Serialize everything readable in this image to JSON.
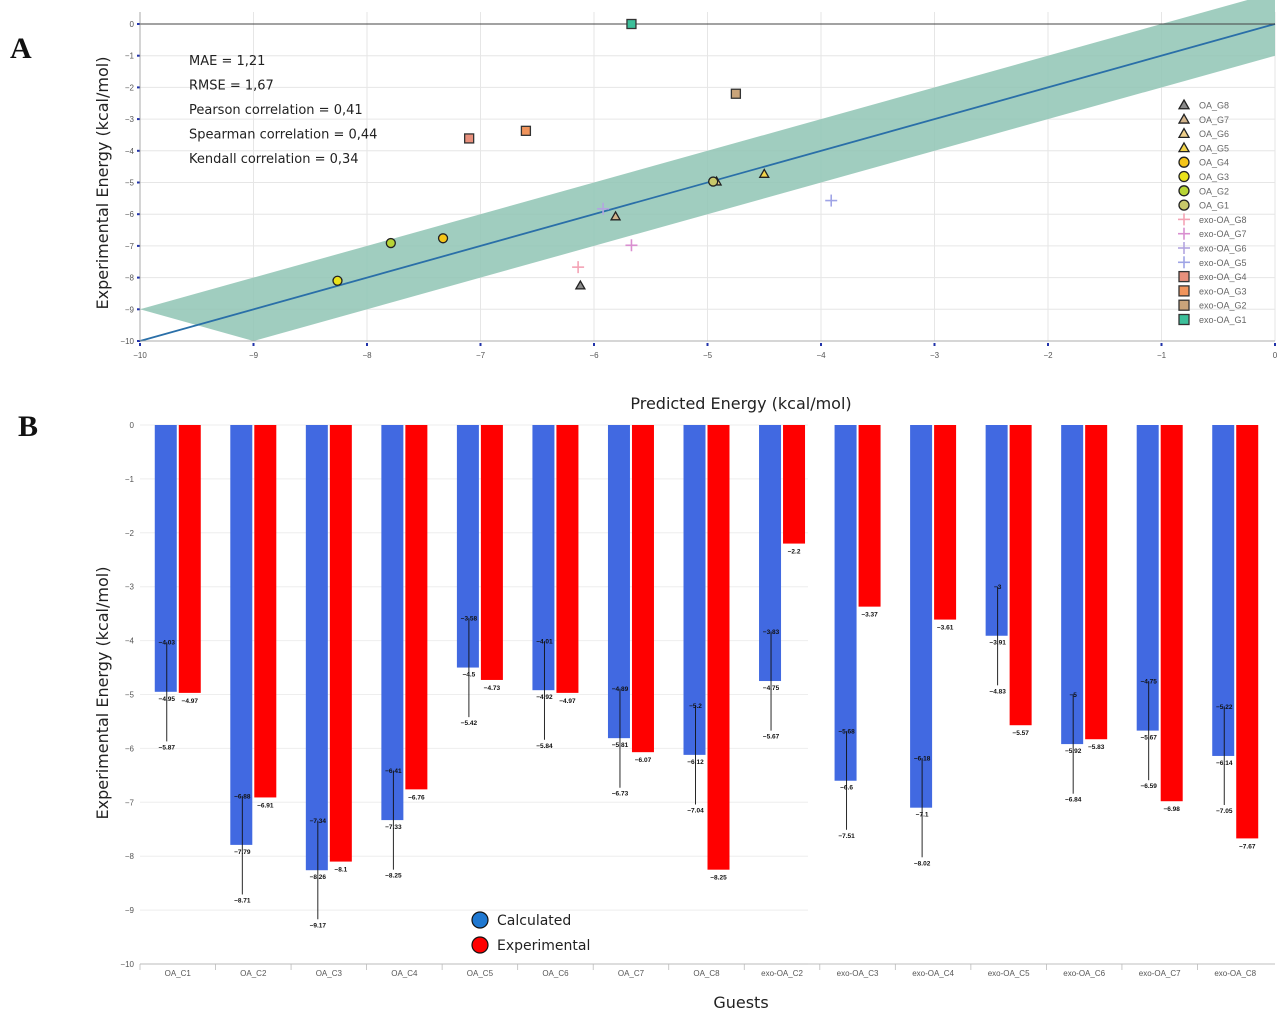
{
  "panel_labels": [
    "A",
    "B"
  ],
  "colors": {
    "band": "#8fc4b4",
    "fit_line": "#2a6fa8",
    "calculated": "#4169e1",
    "experimental": "#ff0000"
  },
  "chart_data": [
    {
      "type": "scatter",
      "xlabel": "Predicted Energy (kcal/mol)",
      "ylabel": "Experimental Energy (kcal/mol)",
      "xlim": [
        -10,
        0
      ],
      "ylim": [
        -10,
        0
      ],
      "xticks": [
        -10,
        -9,
        -8,
        -7,
        -6,
        -5,
        -4,
        -3,
        -2,
        -1,
        0
      ],
      "yticks": [
        0,
        -1,
        -2,
        -3,
        -4,
        -5,
        -6,
        -7,
        -8,
        -9,
        -10
      ],
      "grid": true,
      "stats": [
        "MAE = 1,21",
        "RMSE = 1,67",
        "Pearson correlation = 0,41",
        "Spearman correlation = 0,44",
        "Kendall correlation = 0,34"
      ],
      "legend_position": "right",
      "series": [
        {
          "name": "OA_G8",
          "marker": "triangle",
          "color": "#8a8a8a",
          "points": [
            [
              -6.12,
              -8.25
            ]
          ]
        },
        {
          "name": "OA_G7",
          "marker": "triangle",
          "color": "#d2b48c",
          "points": [
            [
              -5.81,
              -6.07
            ]
          ]
        },
        {
          "name": "OA_G6",
          "marker": "triangle",
          "color": "#eecf8a",
          "points": [
            [
              -4.92,
              -4.97
            ]
          ]
        },
        {
          "name": "OA_G5",
          "marker": "triangle",
          "color": "#f2d349",
          "points": [
            [
              -4.5,
              -4.73
            ]
          ]
        },
        {
          "name": "OA_G4",
          "marker": "circle",
          "color": "#f5c518",
          "points": [
            [
              -7.33,
              -6.76
            ]
          ]
        },
        {
          "name": "OA_G3",
          "marker": "circle",
          "color": "#e9e21a",
          "points": [
            [
              -8.26,
              -8.1
            ]
          ]
        },
        {
          "name": "OA_G2",
          "marker": "circle",
          "color": "#b7d435",
          "points": [
            [
              -7.79,
              -6.91
            ]
          ]
        },
        {
          "name": "OA_G1",
          "marker": "circle",
          "color": "#c8c86a",
          "points": [
            [
              -4.95,
              -4.97
            ]
          ]
        },
        {
          "name": "exo-OA_G8",
          "marker": "cross",
          "color": "#f4a3b5",
          "points": [
            [
              -6.14,
              -7.67
            ]
          ]
        },
        {
          "name": "exo-OA_G7",
          "marker": "cross",
          "color": "#d98fd0",
          "points": [
            [
              -5.67,
              -6.98
            ]
          ]
        },
        {
          "name": "exo-OA_G6",
          "marker": "cross",
          "color": "#b3a5e0",
          "points": [
            [
              -5.92,
              -5.83
            ]
          ]
        },
        {
          "name": "exo-OA_G5",
          "marker": "cross",
          "color": "#9fa4e6",
          "points": [
            [
              -3.91,
              -5.57
            ]
          ]
        },
        {
          "name": "exo-OA_G4",
          "marker": "square",
          "color": "#e8907c",
          "points": [
            [
              -7.1,
              -3.61
            ]
          ]
        },
        {
          "name": "exo-OA_G3",
          "marker": "square",
          "color": "#f0945c",
          "points": [
            [
              -6.6,
              -3.37
            ]
          ]
        },
        {
          "name": "exo-OA_G2",
          "marker": "square",
          "color": "#c9a47a",
          "points": [
            [
              -4.75,
              -2.2
            ]
          ]
        },
        {
          "name": "exo-OA_G1",
          "marker": "square",
          "color": "#3cbf9a",
          "points": [
            [
              -5.67,
              0
            ]
          ]
        }
      ]
    },
    {
      "type": "bar",
      "xlabel": "Guests",
      "ylabel": "Experimental Energy (kcal/mol)",
      "ylim": [
        -10,
        0
      ],
      "yticks": [
        0,
        -1,
        -2,
        -3,
        -4,
        -5,
        -6,
        -7,
        -8,
        -9,
        -10
      ],
      "legend_position": "bottom-left",
      "categories": [
        "OA_C1",
        "OA_C2",
        "OA_C3",
        "OA_C4",
        "OA_C5",
        "OA_C6",
        "OA_C7",
        "OA_C8",
        "exo-OA_C2",
        "exo-OA_C3",
        "exo-OA_C4",
        "exo-OA_C5",
        "exo-OA_C6",
        "exo-OA_C7",
        "exo-OA_C8"
      ],
      "series": [
        {
          "name": "Calculated",
          "values": [
            -4.95,
            -7.79,
            -8.26,
            -7.33,
            -4.5,
            -4.92,
            -5.81,
            -6.12,
            -4.75,
            -6.6,
            -7.1,
            -3.91,
            -5.92,
            -5.67,
            -6.14
          ]
        },
        {
          "name": "Experimental",
          "values": [
            -4.97,
            -6.91,
            -8.1,
            -6.76,
            -4.73,
            -4.97,
            -6.07,
            -8.25,
            -2.2,
            -3.37,
            -3.61,
            -5.57,
            -5.83,
            -6.98,
            -7.67
          ]
        }
      ],
      "error_lower": [
        -5.87,
        -8.71,
        -9.17,
        -8.25,
        -5.42,
        -5.84,
        -6.73,
        -7.04,
        -5.67,
        -7.51,
        -8.02,
        -4.83,
        -6.84,
        -6.59,
        -7.05
      ],
      "error_upper": [
        -4.03,
        -6.88,
        -7.34,
        -6.41,
        -3.58,
        -4.01,
        -4.89,
        -5.2,
        -3.83,
        -5.68,
        -6.18,
        -3,
        -5,
        -4.75,
        -5.22
      ],
      "value_labels": [
        "-4.95",
        "-7.79",
        "-8.26",
        "-7.33",
        "-4.5",
        "-4.92",
        "-5.81",
        "-6.12",
        "-4.75",
        "-6.6",
        "-7.1",
        "-3.91",
        "-5.92",
        "-5.67",
        "-6.14"
      ],
      "upper_labels": [
        "-4.03",
        "-6.88",
        "-7.34",
        "-6.41",
        "-3.58",
        "-4.01",
        "-4.89",
        "-5.2",
        "-3.83",
        "-5.68",
        "-6.18",
        "-3",
        "-5",
        "-4.75",
        "-5.22"
      ],
      "lower_labels": [
        "-5.87",
        "-8.71",
        "-9.17",
        "-8.25",
        "-5.42",
        "-5.84",
        "-6.73",
        "-7.04",
        "-5.67",
        "-7.51",
        "-8.02",
        "-4.83",
        "-6.84",
        "-6.59",
        "-7.05"
      ],
      "exp_labels": [
        "-4.97",
        "-6.91",
        "-8.1",
        "-6.76",
        "-4.73",
        "-4.97",
        "-6.07",
        "-8.25",
        "-2.2",
        "-3.37",
        "-3.61",
        "-5.57",
        "-5.83",
        "-6.98",
        "-7.67"
      ]
    }
  ]
}
